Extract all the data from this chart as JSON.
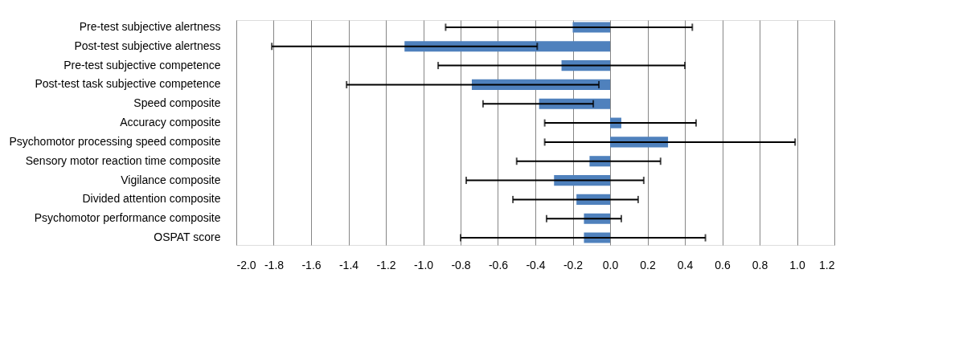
{
  "chart_data": {
    "type": "bar",
    "orientation": "horizontal",
    "categories": [
      "Pre-test subjective alertness",
      "Post-test subjective alertness",
      "Pre-test subjective competence",
      "Post-test task subjective competence",
      "Speed composite",
      "Accuracy composite",
      "Psychomotor processing speed composite",
      "Sensory motor reaction time composite",
      "Vigilance composite",
      "Divided attention composite",
      "Psychomotor performance composite",
      "OSPAT score"
    ],
    "values": [
      -0.2,
      -1.1,
      -0.26,
      -0.74,
      -0.38,
      0.06,
      0.31,
      -0.11,
      -0.3,
      -0.18,
      -0.14,
      -0.14
    ],
    "errors": [
      [
        -0.88,
        0.44
      ],
      [
        -1.81,
        -0.39
      ],
      [
        -0.92,
        0.4
      ],
      [
        -1.41,
        -0.06
      ],
      [
        -0.68,
        -0.09
      ],
      [
        -0.35,
        0.46
      ],
      [
        -0.35,
        0.99
      ],
      [
        -0.5,
        0.27
      ],
      [
        -0.77,
        0.18
      ],
      [
        -0.52,
        0.15
      ],
      [
        -0.34,
        0.06
      ],
      [
        -0.8,
        0.51
      ]
    ],
    "color": "#4f81bd",
    "xlim": [
      -2.0,
      1.2
    ],
    "xticks": [
      {
        "value": -2.0,
        "label": "-2.0"
      },
      {
        "value": -1.8,
        "label": "-1.8"
      },
      {
        "value": -1.6,
        "label": "-1.6"
      },
      {
        "value": -1.4,
        "label": "-1.4"
      },
      {
        "value": -1.2,
        "label": "-1.2"
      },
      {
        "value": -1.0,
        "label": "-1.0"
      },
      {
        "value": -0.8,
        "label": "-0.8"
      },
      {
        "value": -0.6,
        "label": "-0.6"
      },
      {
        "value": -0.4,
        "label": "-0.4"
      },
      {
        "value": -0.2,
        "label": "-0.2"
      },
      {
        "value": 0.0,
        "label": "0.0"
      },
      {
        "value": 0.2,
        "label": "0.2"
      },
      {
        "value": 0.4,
        "label": "0.4"
      },
      {
        "value": 0.6,
        "label": "0.6"
      },
      {
        "value": 0.8,
        "label": "0.8"
      },
      {
        "value": 1.0,
        "label": "1.0"
      },
      {
        "value": 1.2,
        "label": "1.2"
      }
    ],
    "grid": "x"
  }
}
